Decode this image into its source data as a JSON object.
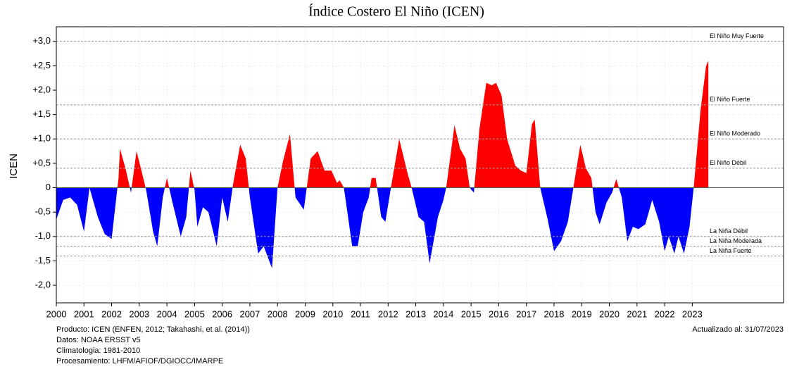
{
  "chart_data": {
    "type": "area",
    "title": "Índice Costero El Niño (ICEN)",
    "y_label": "ICEN",
    "color_positive": "#ff0000",
    "color_negative": "#0000ff",
    "xlim": [
      2000,
      2026.3
    ],
    "ylim": [
      -2.36,
      3.3
    ],
    "xticks": [
      2000,
      2001,
      2002,
      2003,
      2004,
      2005,
      2006,
      2007,
      2008,
      2009,
      2010,
      2011,
      2012,
      2013,
      2014,
      2015,
      2016,
      2017,
      2018,
      2019,
      2020,
      2021,
      2022,
      2023
    ],
    "yticks": [
      {
        "value": 3,
        "label": "+3,0"
      },
      {
        "value": 2.5,
        "label": "+2,5"
      },
      {
        "value": 2,
        "label": "+2,0"
      },
      {
        "value": 1.5,
        "label": "+1,5"
      },
      {
        "value": 1,
        "label": "+1,0"
      },
      {
        "value": 0.5,
        "label": "+0,5"
      },
      0,
      {
        "value": -0.5,
        "label": "-0,5"
      },
      {
        "value": -1,
        "label": "-1,0"
      },
      {
        "value": -1.5,
        "label": "-1,5"
      },
      {
        "value": -2,
        "label": "-2,0"
      }
    ],
    "grid": true,
    "thresholds": [
      {
        "value": 3,
        "label": "El Niño Muy Fuerte"
      },
      {
        "value": 1.7,
        "label": "El Niño Fuerte"
      },
      {
        "value": 1,
        "label": "El Niño Moderado"
      },
      {
        "value": 0.4,
        "label": "El Niño Débil"
      },
      {
        "value": -1,
        "label": "La Niña Débil"
      },
      {
        "value": -1.2,
        "label": "La Niña Moderada"
      },
      {
        "value": -1.4,
        "label": "La Niña Fuerte"
      }
    ],
    "x": [
      2000.0,
      2000.25,
      2000.5,
      2000.75,
      2001.0,
      2001.2,
      2001.5,
      2001.75,
      2002.0,
      2002.25,
      2002.3,
      2002.5,
      2002.7,
      2002.9,
      2003.1,
      2003.25,
      2003.5,
      2003.65,
      2003.85,
      2004.0,
      2004.2,
      2004.5,
      2004.7,
      2004.85,
      2005.0,
      2005.1,
      2005.3,
      2005.5,
      2005.8,
      2006.0,
      2006.2,
      2006.4,
      2006.65,
      2006.85,
      2007.0,
      2007.3,
      2007.5,
      2007.8,
      2008.0,
      2008.2,
      2008.45,
      2008.65,
      2008.95,
      2009.2,
      2009.45,
      2009.7,
      2009.95,
      2010.15,
      2010.25,
      2010.4,
      2010.7,
      2010.9,
      2011.1,
      2011.3,
      2011.4,
      2011.55,
      2011.75,
      2011.9,
      2012.1,
      2012.4,
      2012.7,
      2012.85,
      2013.1,
      2013.3,
      2013.5,
      2013.8,
      2014.0,
      2014.1,
      2014.4,
      2014.6,
      2014.8,
      2014.95,
      2015.1,
      2015.3,
      2015.55,
      2015.75,
      2015.9,
      2016.1,
      2016.3,
      2016.6,
      2016.8,
      2017.0,
      2017.2,
      2017.3,
      2017.5,
      2017.75,
      2018.0,
      2018.25,
      2018.5,
      2018.7,
      2018.95,
      2019.15,
      2019.35,
      2019.5,
      2019.65,
      2019.9,
      2020.1,
      2020.25,
      2020.45,
      2020.65,
      2020.85,
      2021.05,
      2021.3,
      2021.55,
      2021.8,
      2022.0,
      2022.15,
      2022.35,
      2022.5,
      2022.7,
      2022.9,
      2023.05,
      2023.3,
      2023.5,
      2023.58
    ],
    "values": [
      -0.65,
      -0.25,
      -0.2,
      -0.35,
      -0.9,
      0.0,
      -0.6,
      -0.95,
      -1.05,
      0.2,
      0.8,
      0.4,
      -0.1,
      0.75,
      0.3,
      -0.05,
      -0.9,
      -1.2,
      -0.2,
      0.2,
      -0.3,
      -1.0,
      -0.6,
      0.35,
      -0.05,
      -0.8,
      -0.4,
      -0.5,
      -1.2,
      -0.2,
      -0.7,
      0.1,
      0.88,
      0.6,
      -0.2,
      -1.35,
      -1.2,
      -1.65,
      0.0,
      0.55,
      1.1,
      -0.2,
      -0.45,
      0.6,
      0.75,
      0.35,
      0.35,
      0.1,
      0.15,
      0.0,
      -1.2,
      -1.2,
      -0.5,
      -0.2,
      0.2,
      0.2,
      -0.6,
      -0.7,
      0.0,
      1.0,
      0.3,
      0.0,
      -0.6,
      -0.7,
      -1.55,
      -0.6,
      -0.25,
      0.0,
      1.28,
      0.8,
      0.6,
      0.0,
      -0.1,
      1.2,
      2.15,
      2.1,
      2.15,
      1.9,
      1.0,
      0.45,
      0.35,
      0.3,
      1.3,
      1.4,
      0.0,
      -0.6,
      -1.3,
      -1.1,
      -0.7,
      0.0,
      0.88,
      0.4,
      0.2,
      -0.5,
      -0.75,
      -0.3,
      -0.1,
      0.18,
      -0.2,
      -1.1,
      -0.8,
      -0.85,
      -0.75,
      -0.25,
      -0.7,
      -1.3,
      -1.0,
      -1.35,
      -1.0,
      -1.35,
      -0.8,
      0.0,
      1.6,
      2.5,
      2.6
    ],
    "footer": [
      "Producto: ICEN (ENFEN, 2012; Takahashi, et al. (2014))",
      "Datos: NOAA ERSST v5",
      "Climatologia: 1981-2010",
      "Procesamiento: LHFM/AFIOF/DGIOCC/IMARPE"
    ],
    "updated": "Actualizado al: 31/07/2023"
  }
}
